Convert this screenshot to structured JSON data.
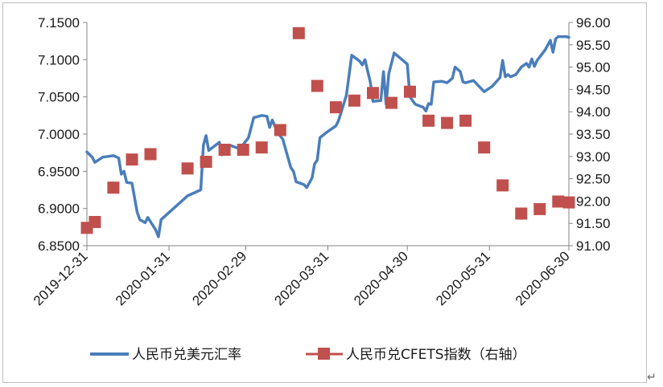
{
  "chart_data": {
    "type": "line",
    "title": "",
    "xlabel": "",
    "ylabel": "",
    "x_ticks": [
      "2019-12-31",
      "2020-01-31",
      "2020-02-29",
      "2020-03-31",
      "2020-04-30",
      "2020-05-31",
      "2020-06-30"
    ],
    "x_range": [
      "2019-12-31",
      "2020-06-30"
    ],
    "y_left": {
      "ticks": [
        "7.1500",
        "7.1000",
        "7.0500",
        "7.0000",
        "6.9500",
        "6.9000",
        "6.8500"
      ],
      "range": [
        6.85,
        7.15
      ]
    },
    "y_right": {
      "ticks": [
        "96.00",
        "95.50",
        "95.00",
        "94.50",
        "94.00",
        "93.50",
        "93.00",
        "92.50",
        "92.00",
        "91.50",
        "91.00"
      ],
      "range": [
        91.0,
        96.0
      ]
    },
    "grid": "horizontal, none",
    "legend_position": "bottom",
    "series": [
      {
        "name": "人民币兑美元汇率",
        "axis": "left",
        "color": "#4a7ebb",
        "style": "line",
        "points": [
          [
            "2019-12-31",
            6.976
          ],
          [
            "2020-01-02",
            6.969
          ],
          [
            "2020-01-03",
            6.962
          ],
          [
            "2020-01-06",
            6.969
          ],
          [
            "2020-01-08",
            6.97
          ],
          [
            "2020-01-10",
            6.971
          ],
          [
            "2020-01-12",
            6.968
          ],
          [
            "2020-01-13",
            6.946
          ],
          [
            "2020-01-14",
            6.95
          ],
          [
            "2020-01-15",
            6.935
          ],
          [
            "2020-01-17",
            6.934
          ],
          [
            "2020-01-19",
            6.895
          ],
          [
            "2020-01-20",
            6.885
          ],
          [
            "2020-01-22",
            6.881
          ],
          [
            "2020-01-23",
            6.888
          ],
          [
            "2020-01-26",
            6.871
          ],
          [
            "2020-01-27",
            6.862
          ],
          [
            "2020-01-28",
            6.885
          ],
          [
            "2020-02-07",
            6.917
          ],
          [
            "2020-02-12",
            6.925
          ],
          [
            "2020-02-13",
            6.985
          ],
          [
            "2020-02-14",
            6.998
          ],
          [
            "2020-02-15",
            6.978
          ],
          [
            "2020-02-19",
            6.989
          ],
          [
            "2020-02-20",
            6.972
          ],
          [
            "2020-02-23",
            6.985
          ],
          [
            "2020-02-26",
            6.981
          ],
          [
            "2020-02-28",
            6.986
          ],
          [
            "2020-03-01",
            6.995
          ],
          [
            "2020-03-03",
            7.022
          ],
          [
            "2020-03-06",
            7.025
          ],
          [
            "2020-03-08",
            7.024
          ],
          [
            "2020-03-09",
            7.009
          ],
          [
            "2020-03-10",
            7.019
          ],
          [
            "2020-03-12",
            7.002
          ],
          [
            "2020-03-14",
            6.993
          ],
          [
            "2020-03-17",
            6.955
          ],
          [
            "2020-03-18",
            6.95
          ],
          [
            "2020-03-19",
            6.936
          ],
          [
            "2020-03-22",
            6.932
          ],
          [
            "2020-03-23",
            6.928
          ],
          [
            "2020-03-25",
            6.941
          ],
          [
            "2020-03-26",
            6.96
          ],
          [
            "2020-03-27",
            6.965
          ],
          [
            "2020-03-28",
            6.995
          ],
          [
            "2020-03-30",
            7.001
          ],
          [
            "2020-04-01",
            7.006
          ],
          [
            "2020-04-03",
            7.011
          ],
          [
            "2020-04-04",
            7.018
          ],
          [
            "2020-04-07",
            7.052
          ],
          [
            "2020-04-09",
            7.106
          ],
          [
            "2020-04-12",
            7.098
          ],
          [
            "2020-04-13",
            7.093
          ],
          [
            "2020-04-14",
            7.1
          ],
          [
            "2020-04-16",
            7.07
          ],
          [
            "2020-04-17",
            7.044
          ],
          [
            "2020-04-20",
            7.045
          ],
          [
            "2020-04-21",
            7.084
          ],
          [
            "2020-04-22",
            7.04
          ],
          [
            "2020-04-23",
            7.081
          ],
          [
            "2020-04-25",
            7.109
          ],
          [
            "2020-04-28",
            7.1
          ],
          [
            "2020-04-30",
            7.094
          ],
          [
            "2020-05-01",
            7.05
          ],
          [
            "2020-05-03",
            7.04
          ],
          [
            "2020-05-06",
            7.036
          ],
          [
            "2020-05-07",
            7.031
          ],
          [
            "2020-05-08",
            7.041
          ],
          [
            "2020-05-09",
            7.04
          ],
          [
            "2020-05-10",
            7.07
          ],
          [
            "2020-05-13",
            7.071
          ],
          [
            "2020-05-15",
            7.069
          ],
          [
            "2020-05-17",
            7.075
          ],
          [
            "2020-05-18",
            7.09
          ],
          [
            "2020-05-20",
            7.084
          ],
          [
            "2020-05-21",
            7.07
          ],
          [
            "2020-05-22",
            7.069
          ],
          [
            "2020-05-25",
            7.072
          ],
          [
            "2020-05-29",
            7.057
          ],
          [
            "2020-06-01",
            7.064
          ],
          [
            "2020-06-04",
            7.076
          ],
          [
            "2020-06-05",
            7.099
          ],
          [
            "2020-06-06",
            7.077
          ],
          [
            "2020-06-07",
            7.08
          ],
          [
            "2020-06-08",
            7.077
          ],
          [
            "2020-06-10",
            7.08
          ],
          [
            "2020-06-12",
            7.09
          ],
          [
            "2020-06-14",
            7.095
          ],
          [
            "2020-06-15",
            7.09
          ],
          [
            "2020-06-16",
            7.101
          ],
          [
            "2020-06-17",
            7.091
          ],
          [
            "2020-06-18",
            7.099
          ],
          [
            "2020-06-21",
            7.113
          ],
          [
            "2020-06-23",
            7.126
          ],
          [
            "2020-06-24",
            7.11
          ],
          [
            "2020-06-25",
            7.128
          ],
          [
            "2020-06-26",
            7.131
          ],
          [
            "2020-06-29",
            7.131
          ],
          [
            "2020-06-30",
            7.13
          ]
        ]
      },
      {
        "name": "人民币兑CFETS指数（右轴）",
        "axis": "right",
        "color": "#c0504d",
        "style": "square-markers",
        "points": [
          [
            "2019-12-31",
            91.4
          ],
          [
            "2020-01-03",
            91.53
          ],
          [
            "2020-01-10",
            92.3
          ],
          [
            "2020-01-17",
            92.93
          ],
          [
            "2020-01-24",
            93.05
          ],
          [
            "2020-02-07",
            92.73
          ],
          [
            "2020-02-14",
            92.88
          ],
          [
            "2020-02-21",
            93.15
          ],
          [
            "2020-02-28",
            93.15
          ],
          [
            "2020-03-06",
            93.2
          ],
          [
            "2020-03-13",
            93.59
          ],
          [
            "2020-03-20",
            95.76
          ],
          [
            "2020-03-27",
            94.58
          ],
          [
            "2020-04-03",
            94.1
          ],
          [
            "2020-04-10",
            94.25
          ],
          [
            "2020-04-17",
            94.42
          ],
          [
            "2020-04-24",
            94.2
          ],
          [
            "2020-05-01",
            94.45
          ],
          [
            "2020-05-08",
            93.8
          ],
          [
            "2020-05-15",
            93.75
          ],
          [
            "2020-05-22",
            93.8
          ],
          [
            "2020-05-29",
            93.2
          ],
          [
            "2020-06-05",
            92.35
          ],
          [
            "2020-06-12",
            91.72
          ],
          [
            "2020-06-19",
            91.82
          ],
          [
            "2020-06-26",
            91.99
          ],
          [
            "2020-06-30",
            91.97
          ]
        ]
      }
    ]
  },
  "decorations": {
    "corner_mark": "↵"
  }
}
